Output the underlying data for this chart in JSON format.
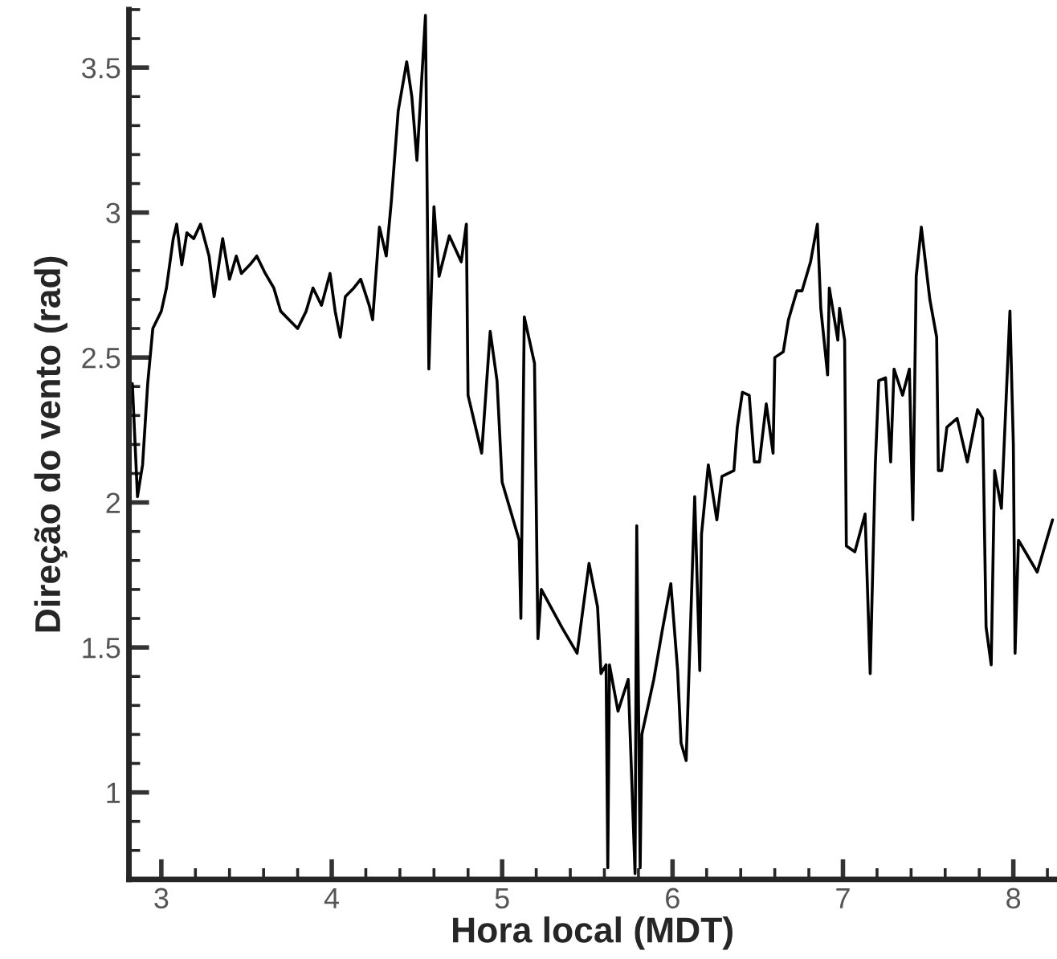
{
  "chart_data": {
    "type": "line",
    "xlabel": "Hora local (MDT)",
    "ylabel": "Direção do vento (rad)",
    "xlim": [
      2.81,
      8.25
    ],
    "ylim": [
      0.7,
      3.7
    ],
    "xticks": [
      3,
      4,
      5,
      6,
      7,
      8
    ],
    "yticks": [
      1,
      1.5,
      2,
      2.5,
      3,
      3.5
    ],
    "grid": false,
    "marker": "none",
    "line_style": "solid",
    "series": [
      {
        "color": "#000000",
        "x": [
          2.83,
          2.86,
          2.89,
          2.92,
          2.95,
          3.0,
          3.03,
          3.07,
          3.09,
          3.12,
          3.15,
          3.19,
          3.23,
          3.28,
          3.31,
          3.36,
          3.4,
          3.44,
          3.47,
          3.52,
          3.56,
          3.61,
          3.66,
          3.7,
          3.75,
          3.8,
          3.85,
          3.89,
          3.94,
          3.99,
          4.02,
          4.05,
          4.08,
          4.13,
          4.17,
          4.22,
          4.24,
          4.28,
          4.32,
          4.35,
          4.39,
          4.44,
          4.47,
          4.5,
          4.55,
          4.57,
          4.6,
          4.63,
          4.69,
          4.76,
          4.79,
          4.8,
          4.88,
          4.93,
          4.97,
          5.0,
          5.1,
          5.11,
          5.13,
          5.19,
          5.21,
          5.23,
          5.35,
          5.44,
          5.51,
          5.56,
          5.58,
          5.61,
          5.62,
          5.63,
          5.68,
          5.74,
          5.78,
          5.79,
          5.81,
          5.82,
          5.89,
          5.94,
          5.99,
          6.03,
          6.05,
          6.08,
          6.13,
          6.16,
          6.17,
          6.21,
          6.26,
          6.29,
          6.36,
          6.38,
          6.41,
          6.45,
          6.48,
          6.51,
          6.55,
          6.59,
          6.6,
          6.65,
          6.68,
          6.73,
          6.76,
          6.81,
          6.85,
          6.87,
          6.91,
          6.92,
          6.97,
          6.98,
          7.01,
          7.02,
          7.07,
          7.13,
          7.16,
          7.19,
          7.21,
          7.25,
          7.28,
          7.3,
          7.35,
          7.39,
          7.41,
          7.43,
          7.46,
          7.51,
          7.55,
          7.56,
          7.58,
          7.61,
          7.67,
          7.73,
          7.79,
          7.82,
          7.84,
          7.87,
          7.89,
          7.93,
          7.98,
          8.0,
          8.01,
          8.03,
          8.14,
          8.23
        ],
        "values": [
          2.41,
          2.02,
          2.13,
          2.41,
          2.6,
          2.66,
          2.74,
          2.91,
          2.96,
          2.82,
          2.93,
          2.91,
          2.96,
          2.85,
          2.71,
          2.91,
          2.77,
          2.85,
          2.79,
          2.82,
          2.85,
          2.79,
          2.74,
          2.66,
          2.63,
          2.6,
          2.66,
          2.74,
          2.68,
          2.79,
          2.66,
          2.57,
          2.71,
          2.74,
          2.77,
          2.68,
          2.63,
          2.95,
          2.85,
          3.04,
          3.35,
          3.52,
          3.4,
          3.18,
          3.68,
          2.46,
          3.02,
          2.78,
          2.92,
          2.83,
          2.96,
          2.37,
          2.17,
          2.59,
          2.42,
          2.07,
          1.87,
          1.6,
          2.64,
          2.48,
          1.53,
          1.7,
          1.57,
          1.48,
          1.79,
          1.64,
          1.41,
          1.44,
          0.74,
          1.44,
          1.28,
          1.39,
          0.72,
          1.92,
          0.74,
          1.2,
          1.39,
          1.56,
          1.72,
          1.42,
          1.17,
          1.11,
          2.02,
          1.42,
          1.89,
          2.13,
          1.94,
          2.09,
          2.11,
          2.26,
          2.38,
          2.37,
          2.14,
          2.14,
          2.34,
          2.17,
          2.5,
          2.52,
          2.63,
          2.73,
          2.73,
          2.83,
          2.96,
          2.67,
          2.44,
          2.74,
          2.56,
          2.67,
          2.56,
          1.85,
          1.83,
          1.96,
          1.41,
          2.13,
          2.42,
          2.43,
          2.14,
          2.46,
          2.37,
          2.46,
          1.94,
          2.78,
          2.95,
          2.7,
          2.57,
          2.11,
          2.11,
          2.26,
          2.29,
          2.14,
          2.32,
          2.29,
          1.57,
          1.44,
          2.11,
          1.98,
          2.66,
          2.2,
          1.48,
          1.87,
          1.76,
          1.94
        ]
      }
    ]
  }
}
